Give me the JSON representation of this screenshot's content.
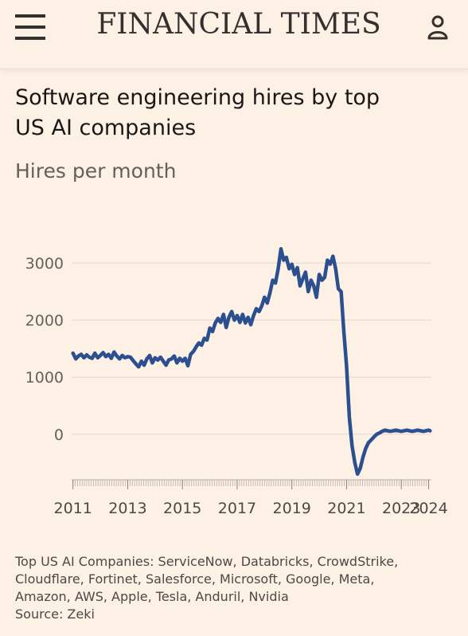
{
  "header": {
    "masthead": "FINANCIAL TIMES",
    "menu_icon": "menu-icon",
    "user_icon": "user-icon"
  },
  "chart_data": {
    "type": "line",
    "title": "Software engineering hires by top US AI companies",
    "title_lines": [
      "Software engineering hires by top",
      "US AI companies"
    ],
    "subtitle": "Hires per month",
    "ylabel": "",
    "xlabel": "",
    "x_ticks": [
      "2011",
      "2013",
      "2015",
      "2017",
      "2019",
      "2021",
      "2023",
      "2024"
    ],
    "x_tick_values": [
      2011,
      2013,
      2015,
      2017,
      2019,
      2021,
      2023,
      2024
    ],
    "y_ticks": [
      "3000",
      "2000",
      "1000",
      "0"
    ],
    "y_tick_values": [
      3000,
      2000,
      1000,
      0
    ],
    "xlim": [
      2010.95,
      2024.1
    ],
    "ylim": [
      -800,
      3700
    ],
    "grid": "horizontal",
    "line_color": "#2b4f8f",
    "series": [
      {
        "x": [
          2011.0,
          2011.1,
          2011.2,
          2011.3,
          2011.4,
          2011.5,
          2011.6,
          2011.7,
          2011.8,
          2011.9,
          2012.0,
          2012.1,
          2012.2,
          2012.3,
          2012.4,
          2012.5,
          2012.6,
          2012.7,
          2012.8,
          2012.9,
          2013.0,
          2013.1,
          2013.2,
          2013.3,
          2013.4,
          2013.5,
          2013.6,
          2013.7,
          2013.8,
          2013.9,
          2014.0,
          2014.1,
          2014.2,
          2014.3,
          2014.4,
          2014.5,
          2014.6,
          2014.7,
          2014.8,
          2014.9,
          2015.0,
          2015.1,
          2015.2,
          2015.3,
          2015.4,
          2015.5,
          2015.6,
          2015.7,
          2015.8,
          2015.9,
          2016.0,
          2016.1,
          2016.2,
          2016.3,
          2016.4,
          2016.5,
          2016.6,
          2016.7,
          2016.8,
          2016.9,
          2017.0,
          2017.1,
          2017.2,
          2017.3,
          2017.4,
          2017.5,
          2017.6,
          2017.7,
          2017.8,
          2017.9,
          2018.0,
          2018.1,
          2018.2,
          2018.3,
          2018.4,
          2018.5,
          2018.6,
          2018.7,
          2018.8,
          2018.9,
          2019.0,
          2019.1,
          2019.2,
          2019.3,
          2019.4,
          2019.5,
          2019.6,
          2019.7,
          2019.8,
          2019.9,
          2020.0,
          2020.1,
          2020.2,
          2020.3,
          2020.4,
          2020.5,
          2020.6,
          2020.7,
          2020.8,
          2020.9,
          2021.0,
          2021.1,
          2021.2,
          2021.3,
          2021.4,
          2021.5,
          2021.6,
          2021.7,
          2021.8,
          2021.9,
          2022.0,
          2022.1,
          2022.2,
          2022.3,
          2022.4,
          2022.5,
          2022.6,
          2022.7,
          2022.8,
          2022.9,
          2023.0,
          2023.1,
          2023.2,
          2023.3,
          2023.4,
          2023.5,
          2023.6,
          2023.7,
          2023.8,
          2023.9,
          2024.0,
          2024.05
        ],
        "values": [
          1420,
          1320,
          1370,
          1400,
          1340,
          1390,
          1350,
          1330,
          1420,
          1340,
          1380,
          1430,
          1360,
          1400,
          1330,
          1440,
          1370,
          1320,
          1380,
          1340,
          1360,
          1350,
          1290,
          1230,
          1180,
          1280,
          1210,
          1320,
          1380,
          1250,
          1340,
          1300,
          1350,
          1280,
          1210,
          1300,
          1320,
          1370,
          1250,
          1330,
          1280,
          1330,
          1200,
          1400,
          1450,
          1530,
          1600,
          1560,
          1680,
          1650,
          1860,
          1800,
          1950,
          2030,
          1960,
          2100,
          1870,
          2050,
          2150,
          2000,
          2080,
          1960,
          2100,
          1950,
          2050,
          1920,
          2080,
          2200,
          2150,
          2250,
          2400,
          2300,
          2480,
          2700,
          2650,
          2900,
          3250,
          3050,
          3100,
          2900,
          2980,
          2800,
          2920,
          2600,
          2720,
          2840,
          2500,
          2700,
          2600,
          2400,
          2800,
          2700,
          2750,
          3050,
          2980,
          3120,
          2900,
          2550,
          2500,
          1800,
          1200,
          300,
          -200,
          -500,
          -700,
          -600,
          -400,
          -250,
          -150,
          -100,
          -50,
          0,
          20,
          50,
          70,
          60,
          50,
          60,
          70,
          60,
          50,
          60,
          70,
          60,
          50,
          60,
          70,
          60,
          50,
          60,
          70,
          60
        ],
        "note": ""
      }
    ]
  },
  "notes": {
    "lines": [
      "Top US AI Companies: ServiceNow, Databricks, CrowdStrike,",
      "Cloudflare, Fortinet, Salesforce, Microsoft, Google, Meta,",
      "Amazon, AWS, Apple, Tesla, Anduril, Nvidia"
    ],
    "source": "Source: Zeki"
  }
}
